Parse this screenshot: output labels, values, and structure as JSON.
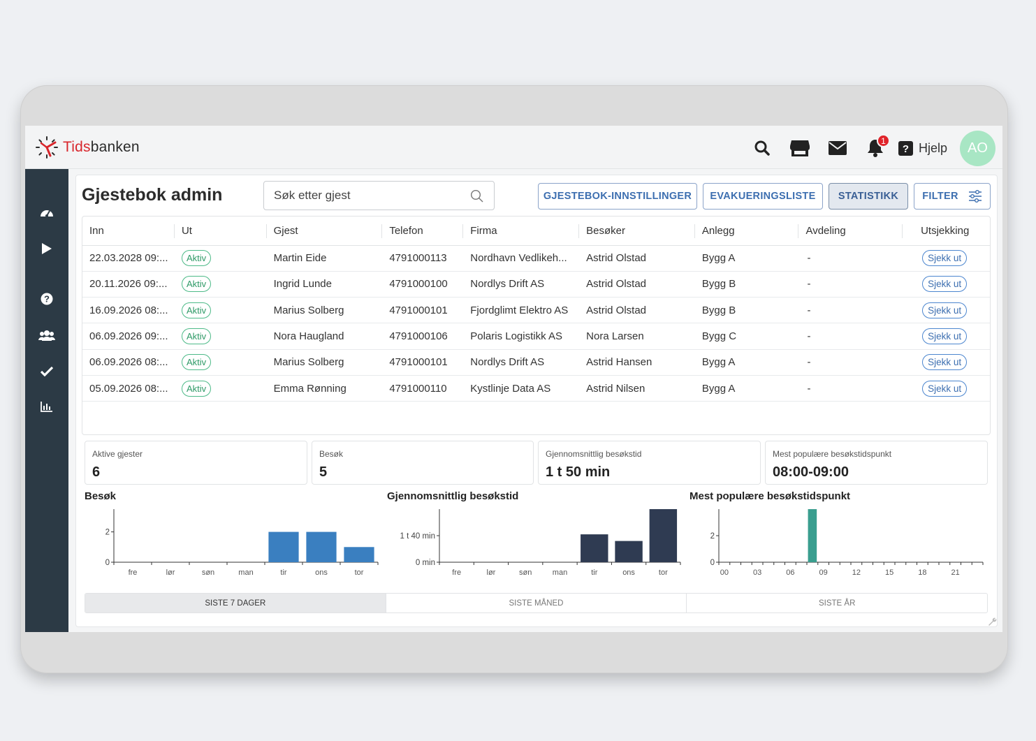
{
  "app": {
    "logo_prefix": "Tids",
    "logo_suffix": "banken"
  },
  "header": {
    "help_label": "Hjelp",
    "avatar_initials": "AO",
    "notification_count": "1"
  },
  "page": {
    "title": "Gjestebok admin"
  },
  "search": {
    "placeholder": "Søk etter gjest"
  },
  "toolbar": {
    "settings_label": "GJESTEBOK-INNSTILLINGER",
    "evac_label": "EVAKUERINGSLISTE",
    "stats_label": "STATISTIKK",
    "filter_label": "FILTER"
  },
  "table": {
    "columns": [
      "Inn",
      "Ut",
      "Gjest",
      "Telefon",
      "Firma",
      "Besøker",
      "Anlegg",
      "Avdeling",
      "Utsjekking"
    ],
    "rows": [
      {
        "inn": "22.03.2028 09:...",
        "ut": "Aktiv",
        "gjest": "Martin Eide",
        "telefon": "4791000113",
        "firma": "Nordhavn Vedlikeh...",
        "besoker": "Astrid Olstad",
        "anlegg": "Bygg A",
        "avdeling": "-",
        "action": "Sjekk ut"
      },
      {
        "inn": "20.11.2026 09:...",
        "ut": "Aktiv",
        "gjest": "Ingrid Lunde",
        "telefon": "4791000100",
        "firma": "Nordlys Drift AS",
        "besoker": "Astrid Olstad",
        "anlegg": "Bygg B",
        "avdeling": "-",
        "action": "Sjekk ut"
      },
      {
        "inn": "16.09.2026 08:...",
        "ut": "Aktiv",
        "gjest": "Marius Solberg",
        "telefon": "4791000101",
        "firma": "Fjordglimt Elektro AS",
        "besoker": "Astrid Olstad",
        "anlegg": "Bygg B",
        "avdeling": "-",
        "action": "Sjekk ut"
      },
      {
        "inn": "06.09.2026 09:...",
        "ut": "Aktiv",
        "gjest": "Nora Haugland",
        "telefon": "4791000106",
        "firma": "Polaris Logistikk AS",
        "besoker": "Nora Larsen",
        "anlegg": "Bygg C",
        "avdeling": "-",
        "action": "Sjekk ut"
      },
      {
        "inn": "06.09.2026 08:...",
        "ut": "Aktiv",
        "gjest": "Marius Solberg",
        "telefon": "4791000101",
        "firma": "Nordlys Drift AS",
        "besoker": "Astrid Hansen",
        "anlegg": "Bygg A",
        "avdeling": "-",
        "action": "Sjekk ut"
      },
      {
        "inn": "05.09.2026 08:...",
        "ut": "Aktiv",
        "gjest": "Emma Rønning",
        "telefon": "4791000110",
        "firma": "Kystlinje Data AS",
        "besoker": "Astrid Nilsen",
        "anlegg": "Bygg A",
        "avdeling": "-",
        "action": "Sjekk ut"
      }
    ]
  },
  "stats": {
    "active_label": "Aktive gjester",
    "active_value": "6",
    "visits_label": "Besøk",
    "visits_value": "5",
    "avg_label": "Gjennomsnittlig besøkstid",
    "avg_value": "1 t 50 min",
    "popular_label": "Mest populære besøkstidspunkt",
    "popular_value": "08:00-09:00"
  },
  "chart_data": [
    {
      "type": "bar",
      "title": "Besøk",
      "categories": [
        "fre",
        "lør",
        "søn",
        "man",
        "tir",
        "ons",
        "tor"
      ],
      "values": [
        0,
        0,
        0,
        0,
        2,
        2,
        1
      ],
      "yticks": [
        "0",
        "2"
      ],
      "ylim": [
        0,
        3.5
      ],
      "color": "#3a7fc0"
    },
    {
      "type": "bar",
      "title": "Gjennomsnittlig besøkstid",
      "categories": [
        "fre",
        "lør",
        "søn",
        "man",
        "tir",
        "ons",
        "tor"
      ],
      "values": [
        0,
        0,
        0,
        0,
        105,
        80,
        200
      ],
      "yticks": [
        "0 min",
        "1 t 40 min"
      ],
      "ylim": [
        0,
        200
      ],
      "color": "#2f3b52"
    },
    {
      "type": "bar",
      "title": "Mest populære besøkstidspunkt",
      "x": [
        "00",
        "03",
        "06",
        "09",
        "12",
        "15",
        "18",
        "21"
      ],
      "hours": 24,
      "values": [
        {
          "hour": 8,
          "value": 4
        }
      ],
      "yticks": [
        "0",
        "2"
      ],
      "ylim": [
        0,
        4
      ],
      "color": "#3a9e8f"
    }
  ],
  "period_tabs": [
    "SISTE 7 DAGER",
    "SISTE MÅNED",
    "SISTE ÅR"
  ]
}
